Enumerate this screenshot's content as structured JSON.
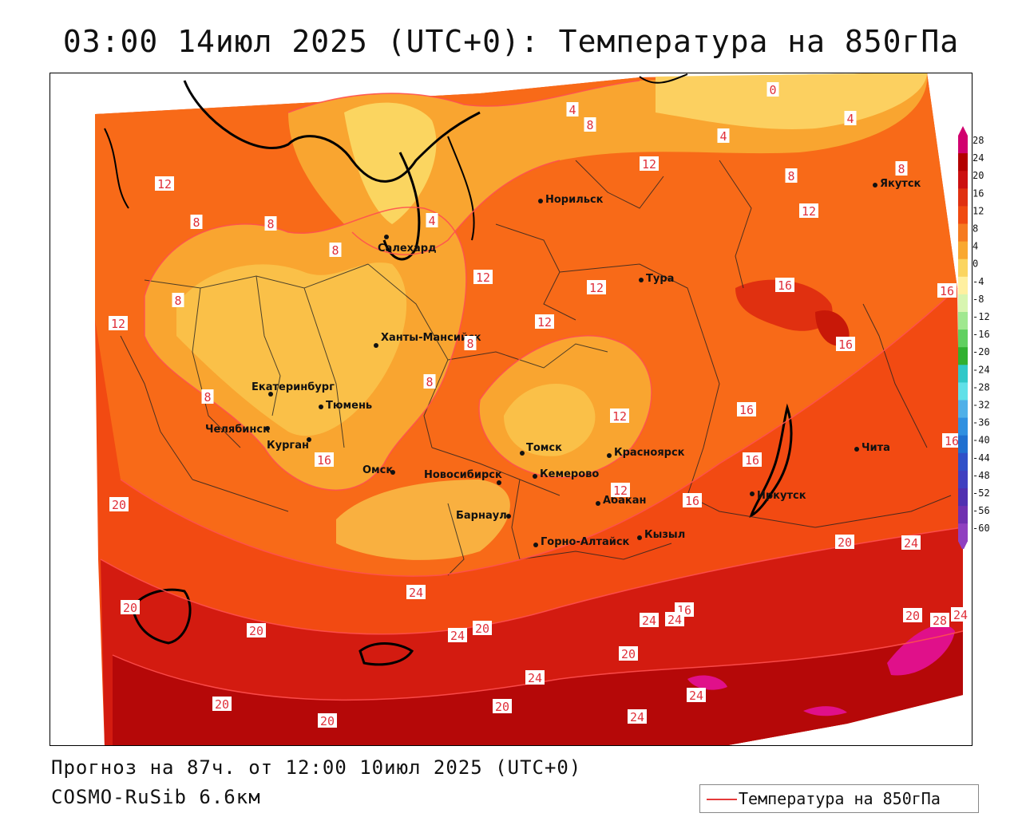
{
  "title": "03:00 14июл 2025 (UTC+0): Температура на 850гПа",
  "footer": {
    "forecast": "Прогноз на 87ч. от 12:00 10июл 2025 (UTC+0)",
    "model": "COSMO-RuSib 6.6км"
  },
  "legend": {
    "label": "Температура на 850гПа",
    "line_color": "#e53a3a"
  },
  "colorbar": {
    "ticks": [
      "28",
      "24",
      "20",
      "16",
      "12",
      "8",
      "4",
      "0",
      "-4",
      "-8",
      "-12",
      "-16",
      "-20",
      "-24",
      "-28",
      "-32",
      "-36",
      "-40",
      "-44",
      "-48",
      "-52",
      "-56",
      "-60"
    ],
    "colors": [
      "#d1006e",
      "#b30000",
      "#cc1010",
      "#e03010",
      "#f04a10",
      "#f67a20",
      "#f9a830",
      "#fbd560",
      "#fff0a0",
      "#d8f5b0",
      "#a0e890",
      "#60d060",
      "#30b030",
      "#30c8c8",
      "#60e0e8",
      "#50b0e8",
      "#3090e0",
      "#2070d0",
      "#3050c8",
      "#4040c0",
      "#5030b0",
      "#7030b0",
      "#9040c0"
    ]
  },
  "cities": [
    {
      "name": "Норильск"
    },
    {
      "name": "Якутск"
    },
    {
      "name": "Салехард"
    },
    {
      "name": "Тура"
    },
    {
      "name": "Ханты-Мансийск"
    },
    {
      "name": "Екатеринбург"
    },
    {
      "name": "Тюмень"
    },
    {
      "name": "Челябинск"
    },
    {
      "name": "Курган"
    },
    {
      "name": "Омск"
    },
    {
      "name": "Новосибирск"
    },
    {
      "name": "Томск"
    },
    {
      "name": "Красноярск"
    },
    {
      "name": "Кемерово"
    },
    {
      "name": "Барнаул"
    },
    {
      "name": "Абакан"
    },
    {
      "name": "Иркутск"
    },
    {
      "name": "Чита"
    },
    {
      "name": "Горно-Алтайск"
    },
    {
      "name": "Кызыл"
    }
  ],
  "isotherm_labels": [
    "0",
    "4",
    "4",
    "8",
    "4",
    "4",
    "12",
    "8",
    "8",
    "12",
    "8",
    "12",
    "12",
    "8",
    "16",
    "12",
    "8",
    "8",
    "16",
    "12",
    "12",
    "8",
    "16",
    "8",
    "8",
    "16",
    "12",
    "16",
    "16",
    "16",
    "20",
    "16",
    "12",
    "20",
    "24",
    "24",
    "20",
    "20",
    "16",
    "20",
    "24",
    "24",
    "24",
    "20",
    "28",
    "24",
    "20",
    "20",
    "24",
    "20",
    "24",
    "20",
    "24"
  ]
}
